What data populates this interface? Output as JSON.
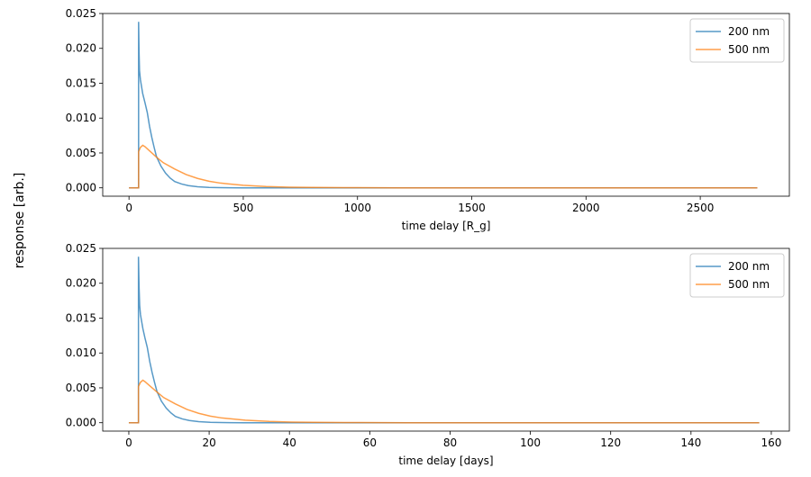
{
  "figure": {
    "ylabel": "response [arb.]"
  },
  "chart_data": [
    {
      "type": "line",
      "xlabel": "time delay [R_g]",
      "ylabel": "",
      "xlim": [
        -115,
        2890
      ],
      "ylim": [
        -0.0012,
        0.025
      ],
      "xticks": [
        0,
        500,
        1000,
        1500,
        2000,
        2500
      ],
      "yticks": [
        0.0,
        0.005,
        0.01,
        0.015,
        0.02,
        0.025
      ],
      "xtick_labels": [
        "0",
        "500",
        "1000",
        "1500",
        "2000",
        "2500"
      ],
      "ytick_labels": [
        "0.000",
        "0.005",
        "0.010",
        "0.015",
        "0.020",
        "0.025"
      ],
      "legend_position": "top-right",
      "grid": false,
      "series": [
        {
          "name": "200 nm",
          "color": "#1f77b4",
          "x": [
            0,
            42,
            42,
            44,
            46,
            50,
            55,
            60,
            70,
            80,
            90,
            100,
            110,
            120,
            140,
            160,
            180,
            200,
            230,
            260,
            300,
            350,
            400,
            500,
            600,
            800,
            1000,
            1500,
            2000,
            2500,
            2750
          ],
          "y": [
            0,
            0,
            0.0238,
            0.0195,
            0.0168,
            0.0155,
            0.0145,
            0.0135,
            0.0122,
            0.0108,
            0.0088,
            0.0072,
            0.0058,
            0.0045,
            0.0031,
            0.0021,
            0.0014,
            0.0009,
            0.00055,
            0.00032,
            0.00015,
            6e-05,
            2e-05,
            0,
            0,
            0,
            0,
            0,
            0,
            0,
            0
          ]
        },
        {
          "name": "500 nm",
          "color": "#ff7f0e",
          "x": [
            0,
            42,
            42,
            50,
            60,
            70,
            80,
            100,
            120,
            150,
            200,
            250,
            300,
            350,
            400,
            500,
            600,
            700,
            800,
            1000,
            1200,
            1500,
            2000,
            2500,
            2750
          ],
          "y": [
            0,
            0,
            0.0052,
            0.0058,
            0.0061,
            0.0059,
            0.0056,
            0.005,
            0.0044,
            0.0036,
            0.0027,
            0.0019,
            0.00135,
            0.00095,
            0.00068,
            0.00036,
            0.00018,
            9e-05,
            5e-05,
            2e-05,
            0,
            0,
            0,
            0,
            0
          ]
        }
      ]
    },
    {
      "type": "line",
      "xlabel": "time delay [days]",
      "ylabel": "",
      "xlim": [
        -6.5,
        164.5
      ],
      "ylim": [
        -0.0012,
        0.025
      ],
      "xticks": [
        0,
        20,
        40,
        60,
        80,
        100,
        120,
        140,
        160
      ],
      "yticks": [
        0.0,
        0.005,
        0.01,
        0.015,
        0.02,
        0.025
      ],
      "xtick_labels": [
        "0",
        "20",
        "40",
        "60",
        "80",
        "100",
        "120",
        "140",
        "160"
      ],
      "ytick_labels": [
        "0.000",
        "0.005",
        "0.010",
        "0.015",
        "0.020",
        "0.025"
      ],
      "legend_position": "top-right",
      "grid": false,
      "series": [
        {
          "name": "200 nm",
          "color": "#1f77b4",
          "x": [
            0,
            2.4,
            2.4,
            2.55,
            2.7,
            2.9,
            3.2,
            3.5,
            4.0,
            4.6,
            5.2,
            5.8,
            6.4,
            7.0,
            8.1,
            9.3,
            10.5,
            11.6,
            13.3,
            15.1,
            17.4,
            20.3,
            23.2,
            29,
            35,
            46,
            58,
            87,
            116,
            145,
            157
          ],
          "y": [
            0,
            0,
            0.0238,
            0.0195,
            0.0168,
            0.0155,
            0.0145,
            0.0135,
            0.0122,
            0.0108,
            0.0088,
            0.0072,
            0.0058,
            0.0045,
            0.0031,
            0.0021,
            0.0014,
            0.0009,
            0.00055,
            0.00032,
            0.00015,
            6e-05,
            2e-05,
            0,
            0,
            0,
            0,
            0,
            0,
            0,
            0
          ]
        },
        {
          "name": "500 nm",
          "color": "#ff7f0e",
          "x": [
            0,
            2.4,
            2.4,
            2.9,
            3.5,
            4.0,
            4.6,
            5.8,
            7.0,
            8.7,
            11.6,
            14.5,
            17.4,
            20.3,
            23.2,
            29,
            35,
            40.6,
            46,
            58,
            70,
            87,
            116,
            145,
            157
          ],
          "y": [
            0,
            0,
            0.0052,
            0.0058,
            0.0061,
            0.0059,
            0.0056,
            0.005,
            0.0044,
            0.0036,
            0.0027,
            0.0019,
            0.00135,
            0.00095,
            0.00068,
            0.00036,
            0.00018,
            9e-05,
            5e-05,
            2e-05,
            0,
            0,
            0,
            0,
            0
          ]
        }
      ]
    }
  ]
}
